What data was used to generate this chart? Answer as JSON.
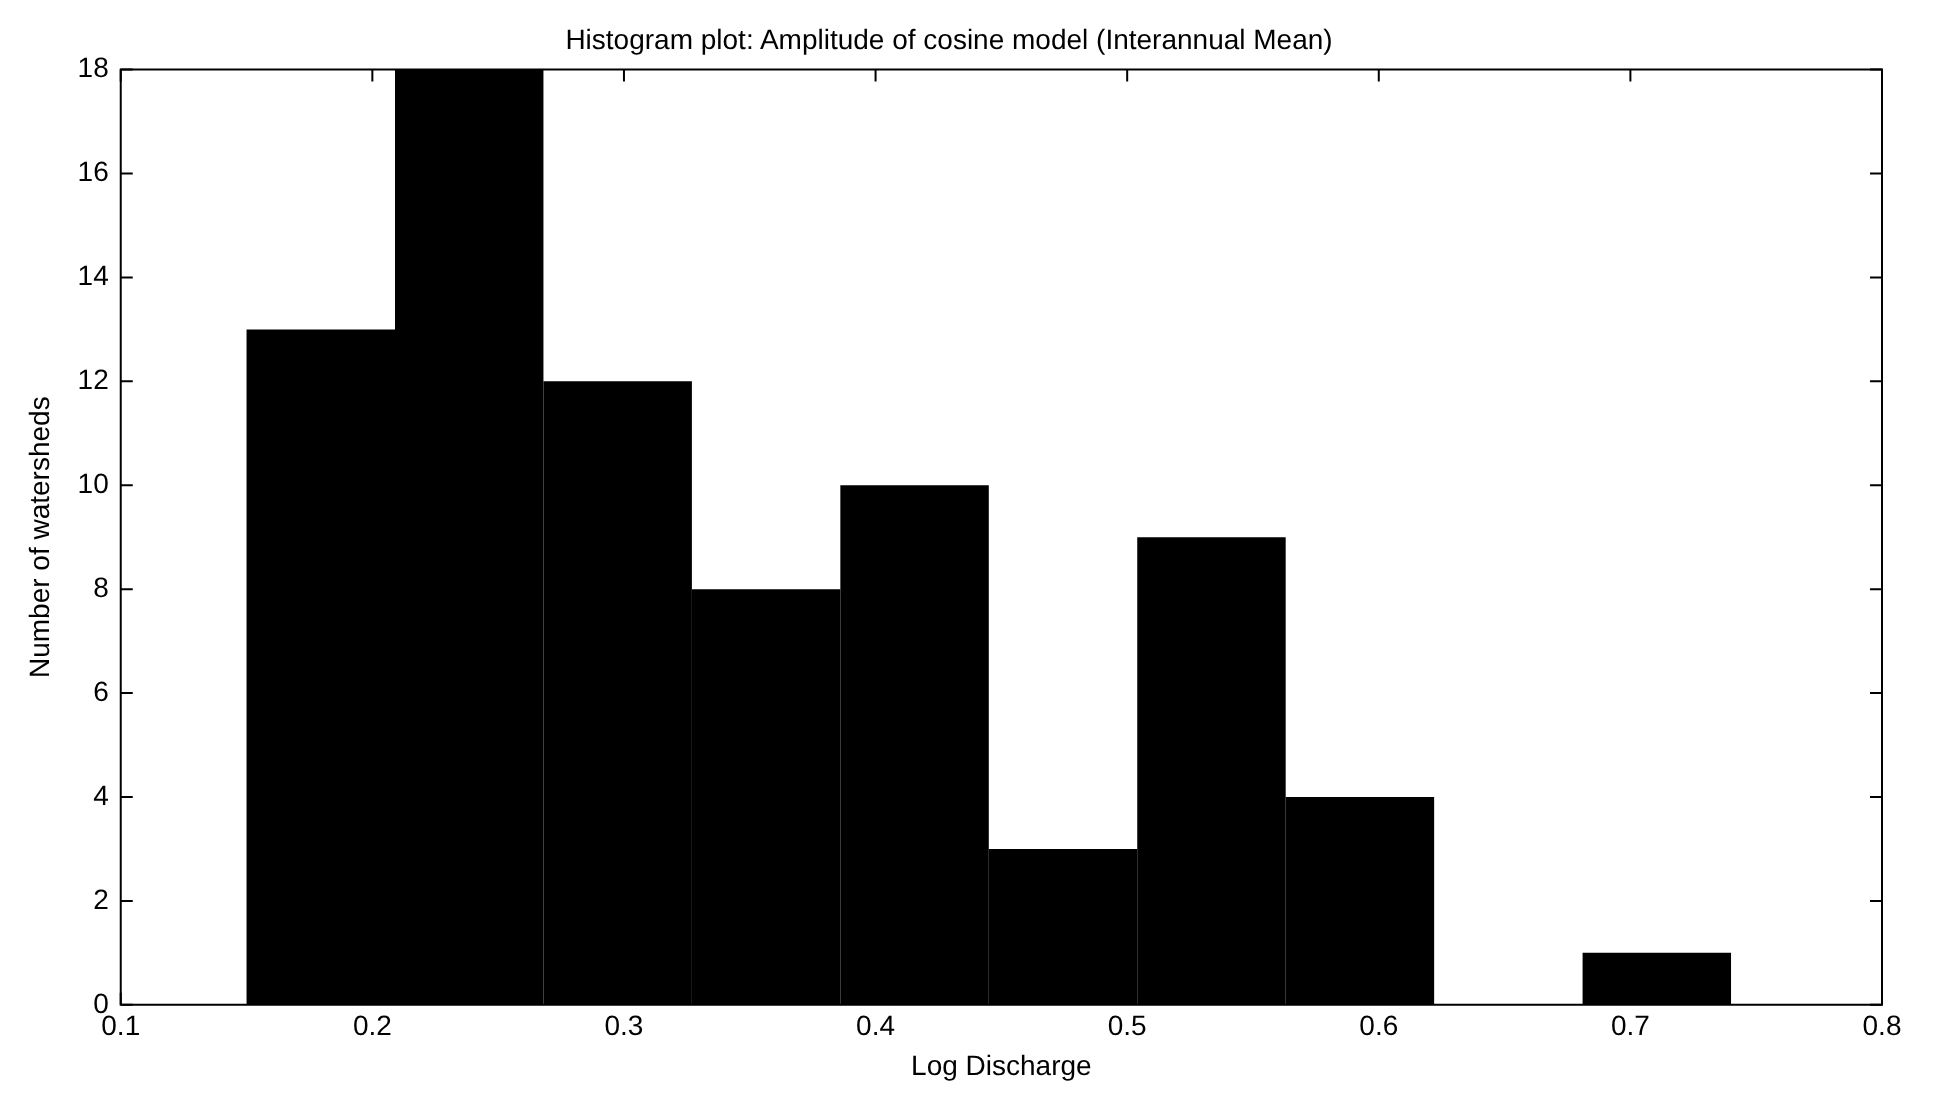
{
  "chart_data": {
    "type": "histogram",
    "title": "Histogram plot: Amplitude of cosine model (Interannual Mean)",
    "xlabel": "Log Discharge",
    "ylabel": "Number of watersheds",
    "bins": [
      0.15,
      0.209,
      0.268,
      0.327,
      0.386,
      0.445,
      0.504,
      0.563,
      0.622,
      0.681,
      0.74
    ],
    "values": [
      13,
      18,
      12,
      8,
      10,
      3,
      9,
      4,
      0,
      1
    ],
    "color": "#000000",
    "xlim": [
      0.1,
      0.8
    ],
    "xticks": [
      0.1,
      0.2,
      0.3,
      0.4,
      0.5,
      0.6,
      0.7,
      0.8
    ],
    "ylim": [
      0,
      18
    ],
    "yticks": [
      0,
      2,
      4,
      6,
      8,
      10,
      12,
      14,
      16,
      18
    ],
    "grid": false,
    "legend": false
  }
}
